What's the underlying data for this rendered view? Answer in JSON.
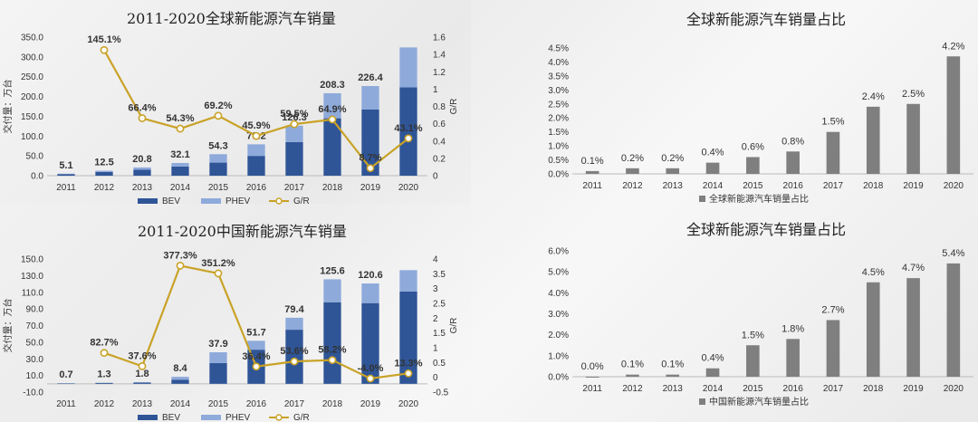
{
  "charts": [
    {
      "id": "global-sales",
      "type": "bar",
      "title": "2011-2020全球新能源汽车销量",
      "ylabel": "交付量：万台",
      "y2label": "G/R",
      "categories": [
        "2011",
        "2012",
        "2013",
        "2014",
        "2015",
        "2016",
        "2017",
        "2018",
        "2019",
        "2020"
      ],
      "ylim": [
        0,
        350
      ],
      "yticks": [
        "0.0",
        "50.0",
        "100.0",
        "150.0",
        "200.0",
        "250.0",
        "300.0",
        "350.0"
      ],
      "y2lim": [
        0,
        1.6
      ],
      "y2ticks": [
        "0",
        "0.2",
        "0.4",
        "0.6",
        "0.8",
        "1",
        "1.2",
        "1.4",
        "1.6"
      ],
      "series": [
        {
          "name": "BEV",
          "values": [
            4.0,
            9.5,
            15.0,
            23.0,
            33.0,
            50.0,
            85.0,
            145.0,
            167.0,
            223.0
          ]
        },
        {
          "name": "PHEV",
          "values": [
            1.1,
            3.0,
            5.8,
            9.1,
            21.3,
            29.2,
            41.3,
            63.3,
            59.4,
            101.0
          ]
        },
        {
          "name": "G/R",
          "values": [
            null,
            1.451,
            0.664,
            0.543,
            0.692,
            0.459,
            0.595,
            0.649,
            0.087,
            0.431
          ]
        }
      ],
      "total_labels": [
        "5.1",
        "12.5",
        "20.8",
        "32.1",
        "54.3",
        "79.2",
        "126.3",
        "208.3",
        "226.4",
        ""
      ],
      "rate_labels": [
        "",
        "145.1%",
        "66.4%",
        "54.3%",
        "69.2%",
        "45.9%",
        "59.5%",
        "64.9%",
        "8.7%",
        "43.1%"
      ],
      "legend": [
        "BEV",
        "PHEV",
        "G/R"
      ],
      "colors": {
        "bev": "#2f5597",
        "phev": "#8eaadb",
        "line": "#c9a227"
      }
    },
    {
      "id": "china-sales",
      "type": "bar",
      "title": "2011-2020中国新能源汽车销量",
      "ylabel": "交付量：万台",
      "y2label": "G/R",
      "categories": [
        "2011",
        "2012",
        "2013",
        "2014",
        "2015",
        "2016",
        "2017",
        "2018",
        "2019",
        "2020"
      ],
      "ylim": [
        -10,
        150
      ],
      "yticks": [
        "-10.0",
        "10.0",
        "30.0",
        "50.0",
        "70.0",
        "90.0",
        "110.0",
        "130.0",
        "150.0"
      ],
      "y2lim": [
        -0.5,
        4
      ],
      "y2ticks": [
        "-0.5",
        "0",
        "0.5",
        "1",
        "1.5",
        "2",
        "2.5",
        "3",
        "3.5",
        "4"
      ],
      "series": [
        {
          "name": "BEV",
          "values": [
            0.5,
            1.0,
            1.5,
            5.0,
            25.0,
            41.0,
            65.0,
            98.0,
            97.0,
            111.0
          ]
        },
        {
          "name": "PHEV",
          "values": [
            0.2,
            0.3,
            0.3,
            3.4,
            12.9,
            10.7,
            14.4,
            27.6,
            23.6,
            25.6
          ]
        },
        {
          "name": "G/R",
          "values": [
            null,
            0.827,
            0.376,
            3.773,
            3.512,
            0.364,
            0.536,
            0.582,
            -0.04,
            0.133
          ]
        }
      ],
      "total_labels": [
        "0.7",
        "1.3",
        "1.8",
        "8.4",
        "37.9",
        "51.7",
        "79.4",
        "125.6",
        "120.6",
        ""
      ],
      "rate_labels": [
        "",
        "82.7%",
        "37.6%",
        "377.3%",
        "351.2%",
        "36.4%",
        "53.6%",
        "58.2%",
        "-4.0%",
        "13.3%"
      ],
      "legend": [
        "BEV",
        "PHEV",
        "G/R"
      ],
      "colors": {
        "bev": "#2f5597",
        "phev": "#8eaadb",
        "line": "#c9a227"
      }
    },
    {
      "id": "global-share",
      "type": "bar",
      "title": "全球新能源汽车销量占比",
      "categories": [
        "2011",
        "2012",
        "2013",
        "2014",
        "2015",
        "2016",
        "2017",
        "2018",
        "2019",
        "2020"
      ],
      "ylim": [
        0,
        4.5
      ],
      "yticks": [
        "0.0%",
        "0.5%",
        "1.0%",
        "1.5%",
        "2.0%",
        "2.5%",
        "3.0%",
        "3.5%",
        "4.0%",
        "4.5%"
      ],
      "series": [
        {
          "name": "全球新能源汽车销量占比",
          "values": [
            0.1,
            0.2,
            0.2,
            0.4,
            0.6,
            0.8,
            1.5,
            2.4,
            2.5,
            4.2
          ]
        }
      ],
      "value_labels": [
        "0.1%",
        "0.2%",
        "0.2%",
        "0.4%",
        "0.6%",
        "0.8%",
        "1.5%",
        "2.4%",
        "2.5%",
        "4.2%"
      ],
      "legend": [
        "全球新能源汽车销量占比"
      ],
      "colors": {
        "bar": "#7f7f7f"
      }
    },
    {
      "id": "china-share",
      "type": "bar",
      "title": "全球新能源汽车销量占比",
      "categories": [
        "2011",
        "2012",
        "2013",
        "2014",
        "2015",
        "2016",
        "2017",
        "2018",
        "2019",
        "2020"
      ],
      "ylim": [
        0,
        6
      ],
      "yticks": [
        "0.0%",
        "1.0%",
        "2.0%",
        "3.0%",
        "4.0%",
        "5.0%",
        "6.0%"
      ],
      "series": [
        {
          "name": "中国新能源汽车销量占比",
          "values": [
            0.0,
            0.1,
            0.1,
            0.4,
            1.5,
            1.8,
            2.7,
            4.5,
            4.7,
            5.4
          ]
        }
      ],
      "value_labels": [
        "0.0%",
        "0.1%",
        "0.1%",
        "0.4%",
        "1.5%",
        "1.8%",
        "2.7%",
        "4.5%",
        "4.7%",
        "5.4%"
      ],
      "legend": [
        "中国新能源汽车销量占比"
      ],
      "colors": {
        "bar": "#7f7f7f"
      }
    }
  ]
}
